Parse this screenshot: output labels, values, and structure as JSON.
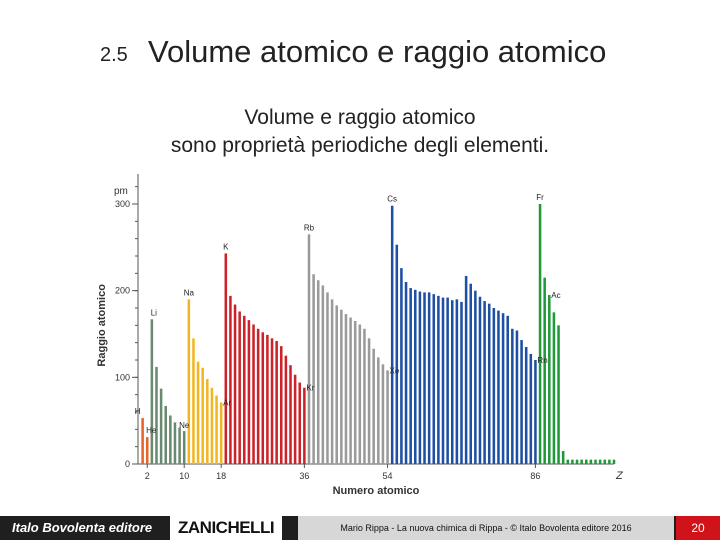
{
  "slide": {
    "section_number": "2.5",
    "title": "Volume atomico e raggio atomico",
    "subtitle_line1": "Volume e raggio atomico",
    "subtitle_line2": "sono proprietà periodiche degli elementi."
  },
  "footer": {
    "publisher": "Italo Bovolenta editore",
    "brand": "ZANICHELLI",
    "credit": "Mario Rippa - La nuova chimica di Rippa - © Italo Bovolenta editore 2016",
    "page_number": "20"
  },
  "chart_data": {
    "type": "bar",
    "unit_label": "pm",
    "xlabel": "Numero atomico",
    "x_axis_symbol": "Z",
    "ylabel": "Raggio atomico",
    "xlim": [
      0,
      103
    ],
    "ylim": [
      0,
      330
    ],
    "yticks": [
      0,
      100,
      200,
      300
    ],
    "xticks": [
      2,
      10,
      18,
      36,
      54,
      86
    ],
    "grid": false,
    "colors": {
      "period1": "#e8632b",
      "period2": "#6a8a70",
      "period3": "#f2b623",
      "period4": "#cc2229",
      "period5": "#9a9a9a",
      "period6": "#1f4fa3",
      "period7": "#1e9a3a"
    },
    "series": [
      {
        "period": 1,
        "color": "period1",
        "x": [
          1,
          2
        ],
        "values": [
          53,
          31
        ]
      },
      {
        "period": 2,
        "color": "period2",
        "x": [
          3,
          4,
          5,
          6,
          7,
          8,
          9,
          10
        ],
        "values": [
          167,
          112,
          87,
          67,
          56,
          48,
          42,
          38
        ]
      },
      {
        "period": 3,
        "color": "period3",
        "x": [
          11,
          12,
          13,
          14,
          15,
          16,
          17,
          18
        ],
        "values": [
          190,
          145,
          118,
          111,
          98,
          88,
          79,
          71
        ]
      },
      {
        "period": 4,
        "color": "period4",
        "x": [
          19,
          20,
          21,
          22,
          23,
          24,
          25,
          26,
          27,
          28,
          29,
          30,
          31,
          32,
          33,
          34,
          35,
          36
        ],
        "values": [
          243,
          194,
          184,
          176,
          171,
          166,
          161,
          156,
          152,
          149,
          145,
          142,
          136,
          125,
          114,
          103,
          94,
          88
        ]
      },
      {
        "period": 5,
        "color": "period5",
        "x": [
          37,
          38,
          39,
          40,
          41,
          42,
          43,
          44,
          45,
          46,
          47,
          48,
          49,
          50,
          51,
          52,
          53,
          54
        ],
        "values": [
          265,
          219,
          212,
          206,
          198,
          190,
          183,
          178,
          173,
          169,
          165,
          161,
          156,
          145,
          133,
          123,
          115,
          108
        ]
      },
      {
        "period": 6,
        "color": "period6",
        "x": [
          55,
          56,
          57,
          58,
          59,
          60,
          61,
          62,
          63,
          64,
          65,
          66,
          67,
          68,
          69,
          70,
          71,
          72,
          73,
          74,
          75,
          76,
          77,
          78,
          79,
          80,
          81,
          82,
          83,
          84,
          85,
          86
        ],
        "values": [
          298,
          253,
          226,
          210,
          203,
          201,
          199,
          198,
          198,
          196,
          194,
          192,
          192,
          189,
          190,
          187,
          217,
          208,
          200,
          193,
          188,
          185,
          180,
          177,
          174,
          171,
          156,
          154,
          143,
          135,
          127,
          120
        ]
      },
      {
        "period": 7,
        "color": "period7",
        "x": [
          87,
          88,
          89,
          90,
          91,
          92,
          93,
          94,
          95,
          96,
          97,
          98,
          99,
          100,
          101,
          102,
          103
        ],
        "values": [
          300,
          215,
          195,
          175,
          160,
          15,
          5,
          5,
          5,
          5,
          5,
          5,
          5,
          5,
          5,
          5,
          5
        ]
      }
    ],
    "annotations": [
      {
        "text": "H",
        "x": 1
      },
      {
        "text": "He",
        "x": 2
      },
      {
        "text": "Li",
        "x": 3
      },
      {
        "text": "Ne",
        "x": 10
      },
      {
        "text": "Na",
        "x": 11
      },
      {
        "text": "Ar",
        "x": 18
      },
      {
        "text": "K",
        "x": 19
      },
      {
        "text": "Kr",
        "x": 36
      },
      {
        "text": "Rb",
        "x": 37
      },
      {
        "text": "Xe",
        "x": 54
      },
      {
        "text": "Cs",
        "x": 55
      },
      {
        "text": "Rn",
        "x": 86
      },
      {
        "text": "Fr",
        "x": 87
      },
      {
        "text": "Ac",
        "x": 89
      }
    ]
  }
}
